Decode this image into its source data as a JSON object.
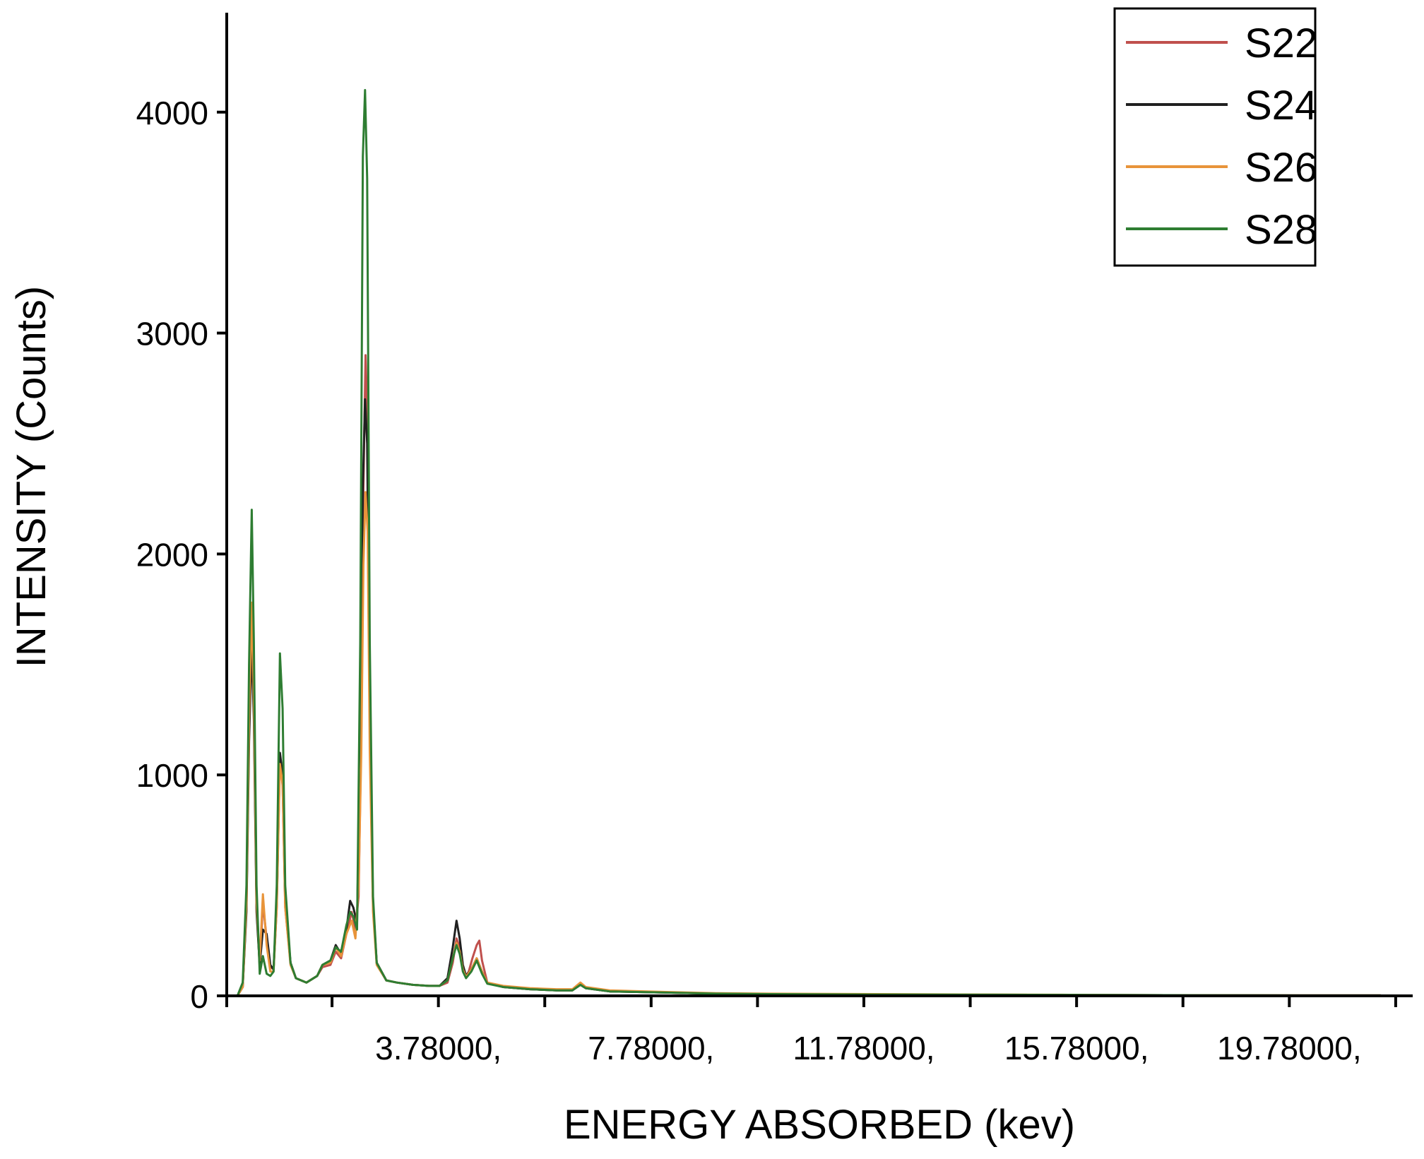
{
  "chart_data": {
    "type": "line",
    "title": "",
    "xlabel": "ENERGY ABSORBED (kev)",
    "ylabel": "INTENSITY (Counts)",
    "xlim": [
      -0.2,
      22.1
    ],
    "ylim": [
      0,
      4450
    ],
    "y_ticks": [
      0,
      1000,
      2000,
      3000,
      4000
    ],
    "y_tick_labels": [
      "0",
      "1000",
      "2000",
      "3000",
      "4000"
    ],
    "x_tick_positions": [
      -0.2,
      1.78,
      3.78,
      5.78,
      7.78,
      9.78,
      11.78,
      13.78,
      15.78,
      17.78,
      19.78,
      21.78
    ],
    "x_labeled_ticks": [
      3.78,
      7.78,
      11.78,
      15.78,
      19.78
    ],
    "x_tick_labels": [
      "3.78000,",
      "7.78000,",
      "11.78000,",
      "15.78000,",
      "19.78000,"
    ],
    "legend": {
      "position": "top-right",
      "entries": [
        "S22",
        "S24",
        "S26",
        "S28"
      ]
    },
    "grid": false,
    "series": [
      {
        "name": "S22",
        "color": "#c0504d",
        "points": [
          [
            0.0,
            0
          ],
          [
            0.1,
            40
          ],
          [
            0.17,
            400
          ],
          [
            0.22,
            1200
          ],
          [
            0.27,
            1650
          ],
          [
            0.31,
            1300
          ],
          [
            0.36,
            400
          ],
          [
            0.42,
            130
          ],
          [
            0.48,
            420
          ],
          [
            0.55,
            260
          ],
          [
            0.62,
            130
          ],
          [
            0.68,
            120
          ],
          [
            0.74,
            400
          ],
          [
            0.8,
            1080
          ],
          [
            0.85,
            950
          ],
          [
            0.9,
            400
          ],
          [
            1.0,
            150
          ],
          [
            1.1,
            80
          ],
          [
            1.3,
            60
          ],
          [
            1.5,
            90
          ],
          [
            1.6,
            130
          ],
          [
            1.75,
            140
          ],
          [
            1.85,
            200
          ],
          [
            1.95,
            170
          ],
          [
            2.05,
            280
          ],
          [
            2.15,
            380
          ],
          [
            2.22,
            300
          ],
          [
            2.28,
            450
          ],
          [
            2.33,
            1200
          ],
          [
            2.37,
            2300
          ],
          [
            2.41,
            2900
          ],
          [
            2.45,
            2600
          ],
          [
            2.49,
            1300
          ],
          [
            2.55,
            420
          ],
          [
            2.62,
            150
          ],
          [
            2.8,
            70
          ],
          [
            3.0,
            60
          ],
          [
            3.3,
            50
          ],
          [
            3.6,
            45
          ],
          [
            3.8,
            45
          ],
          [
            3.95,
            60
          ],
          [
            4.05,
            150
          ],
          [
            4.12,
            260
          ],
          [
            4.18,
            220
          ],
          [
            4.24,
            130
          ],
          [
            4.3,
            90
          ],
          [
            4.35,
            110
          ],
          [
            4.42,
            170
          ],
          [
            4.5,
            230
          ],
          [
            4.55,
            250
          ],
          [
            4.6,
            160
          ],
          [
            4.7,
            60
          ],
          [
            5.0,
            40
          ],
          [
            5.5,
            30
          ],
          [
            6.0,
            25
          ],
          [
            6.3,
            25
          ],
          [
            6.45,
            55
          ],
          [
            6.55,
            35
          ],
          [
            7.0,
            20
          ],
          [
            8.0,
            15
          ],
          [
            9.0,
            10
          ],
          [
            10.0,
            8
          ],
          [
            12.0,
            6
          ],
          [
            14.0,
            5
          ],
          [
            16.0,
            4
          ],
          [
            18.0,
            3
          ],
          [
            20.0,
            2
          ],
          [
            21.5,
            2
          ]
        ]
      },
      {
        "name": "S24",
        "color": "#202020",
        "points": [
          [
            0.0,
            0
          ],
          [
            0.1,
            40
          ],
          [
            0.17,
            380
          ],
          [
            0.22,
            1150
          ],
          [
            0.27,
            1600
          ],
          [
            0.31,
            1250
          ],
          [
            0.36,
            380
          ],
          [
            0.42,
            140
          ],
          [
            0.48,
            300
          ],
          [
            0.55,
            280
          ],
          [
            0.62,
            140
          ],
          [
            0.68,
            120
          ],
          [
            0.74,
            420
          ],
          [
            0.8,
            1100
          ],
          [
            0.85,
            1000
          ],
          [
            0.9,
            420
          ],
          [
            1.0,
            150
          ],
          [
            1.1,
            80
          ],
          [
            1.3,
            60
          ],
          [
            1.5,
            90
          ],
          [
            1.6,
            140
          ],
          [
            1.75,
            160
          ],
          [
            1.85,
            230
          ],
          [
            1.95,
            190
          ],
          [
            2.05,
            300
          ],
          [
            2.12,
            430
          ],
          [
            2.18,
            400
          ],
          [
            2.25,
            330
          ],
          [
            2.31,
            1150
          ],
          [
            2.36,
            2300
          ],
          [
            2.4,
            2700
          ],
          [
            2.44,
            2500
          ],
          [
            2.49,
            1250
          ],
          [
            2.55,
            400
          ],
          [
            2.62,
            150
          ],
          [
            2.8,
            70
          ],
          [
            3.0,
            60
          ],
          [
            3.3,
            50
          ],
          [
            3.6,
            45
          ],
          [
            3.8,
            45
          ],
          [
            3.95,
            80
          ],
          [
            4.05,
            220
          ],
          [
            4.12,
            340
          ],
          [
            4.18,
            260
          ],
          [
            4.24,
            140
          ],
          [
            4.3,
            90
          ],
          [
            4.4,
            120
          ],
          [
            4.5,
            170
          ],
          [
            4.6,
            110
          ],
          [
            4.7,
            60
          ],
          [
            5.0,
            40
          ],
          [
            5.5,
            30
          ],
          [
            6.0,
            25
          ],
          [
            6.3,
            25
          ],
          [
            6.45,
            50
          ],
          [
            6.55,
            35
          ],
          [
            7.0,
            20
          ],
          [
            8.0,
            15
          ],
          [
            9.0,
            10
          ],
          [
            10.0,
            8
          ],
          [
            12.0,
            6
          ],
          [
            14.0,
            5
          ],
          [
            16.0,
            4
          ],
          [
            18.0,
            3
          ],
          [
            20.0,
            2
          ],
          [
            21.5,
            2
          ]
        ]
      },
      {
        "name": "S26",
        "color": "#e8943a",
        "points": [
          [
            0.0,
            0
          ],
          [
            0.1,
            40
          ],
          [
            0.17,
            420
          ],
          [
            0.22,
            1250
          ],
          [
            0.27,
            1780
          ],
          [
            0.31,
            1350
          ],
          [
            0.36,
            420
          ],
          [
            0.42,
            160
          ],
          [
            0.48,
            460
          ],
          [
            0.55,
            230
          ],
          [
            0.62,
            110
          ],
          [
            0.68,
            110
          ],
          [
            0.74,
            400
          ],
          [
            0.8,
            1050
          ],
          [
            0.85,
            960
          ],
          [
            0.9,
            400
          ],
          [
            1.0,
            140
          ],
          [
            1.1,
            80
          ],
          [
            1.3,
            60
          ],
          [
            1.5,
            90
          ],
          [
            1.6,
            140
          ],
          [
            1.75,
            150
          ],
          [
            1.85,
            220
          ],
          [
            1.95,
            180
          ],
          [
            2.05,
            280
          ],
          [
            2.15,
            340
          ],
          [
            2.22,
            260
          ],
          [
            2.28,
            500
          ],
          [
            2.33,
            1100
          ],
          [
            2.37,
            1950
          ],
          [
            2.41,
            2280
          ],
          [
            2.45,
            2100
          ],
          [
            2.49,
            1100
          ],
          [
            2.55,
            380
          ],
          [
            2.62,
            140
          ],
          [
            2.8,
            70
          ],
          [
            3.0,
            60
          ],
          [
            3.3,
            50
          ],
          [
            3.6,
            45
          ],
          [
            3.8,
            45
          ],
          [
            3.95,
            70
          ],
          [
            4.05,
            170
          ],
          [
            4.12,
            240
          ],
          [
            4.18,
            200
          ],
          [
            4.24,
            120
          ],
          [
            4.3,
            85
          ],
          [
            4.4,
            120
          ],
          [
            4.5,
            170
          ],
          [
            4.6,
            110
          ],
          [
            4.7,
            60
          ],
          [
            5.0,
            45
          ],
          [
            5.5,
            35
          ],
          [
            6.0,
            30
          ],
          [
            6.3,
            30
          ],
          [
            6.45,
            60
          ],
          [
            6.55,
            40
          ],
          [
            7.0,
            25
          ],
          [
            8.0,
            18
          ],
          [
            9.0,
            12
          ],
          [
            10.0,
            10
          ],
          [
            12.0,
            8
          ],
          [
            14.0,
            6
          ],
          [
            15.5,
            5
          ],
          [
            16.0,
            4
          ],
          [
            18.0,
            3
          ],
          [
            20.0,
            2
          ],
          [
            21.5,
            2
          ]
        ]
      },
      {
        "name": "S28",
        "color": "#2e7d32",
        "points": [
          [
            0.0,
            0
          ],
          [
            0.1,
            60
          ],
          [
            0.17,
            500
          ],
          [
            0.22,
            1500
          ],
          [
            0.27,
            2200
          ],
          [
            0.31,
            1600
          ],
          [
            0.36,
            500
          ],
          [
            0.42,
            100
          ],
          [
            0.48,
            180
          ],
          [
            0.55,
            100
          ],
          [
            0.62,
            90
          ],
          [
            0.68,
            110
          ],
          [
            0.74,
            500
          ],
          [
            0.8,
            1550
          ],
          [
            0.85,
            1300
          ],
          [
            0.9,
            500
          ],
          [
            1.0,
            150
          ],
          [
            1.1,
            80
          ],
          [
            1.3,
            60
          ],
          [
            1.5,
            90
          ],
          [
            1.6,
            140
          ],
          [
            1.75,
            160
          ],
          [
            1.85,
            220
          ],
          [
            1.95,
            200
          ],
          [
            2.05,
            320
          ],
          [
            2.12,
            380
          ],
          [
            2.18,
            360
          ],
          [
            2.25,
            300
          ],
          [
            2.31,
            1600
          ],
          [
            2.36,
            3800
          ],
          [
            2.4,
            4100
          ],
          [
            2.44,
            3700
          ],
          [
            2.49,
            1600
          ],
          [
            2.55,
            450
          ],
          [
            2.62,
            150
          ],
          [
            2.8,
            70
          ],
          [
            3.0,
            60
          ],
          [
            3.3,
            50
          ],
          [
            3.6,
            45
          ],
          [
            3.8,
            45
          ],
          [
            3.95,
            70
          ],
          [
            4.05,
            170
          ],
          [
            4.12,
            230
          ],
          [
            4.18,
            190
          ],
          [
            4.24,
            110
          ],
          [
            4.3,
            80
          ],
          [
            4.4,
            110
          ],
          [
            4.5,
            160
          ],
          [
            4.6,
            100
          ],
          [
            4.7,
            55
          ],
          [
            5.0,
            40
          ],
          [
            5.5,
            30
          ],
          [
            6.0,
            25
          ],
          [
            6.3,
            25
          ],
          [
            6.45,
            50
          ],
          [
            6.55,
            35
          ],
          [
            7.0,
            20
          ],
          [
            8.0,
            15
          ],
          [
            9.0,
            10
          ],
          [
            10.0,
            8
          ],
          [
            12.0,
            6
          ],
          [
            14.0,
            5
          ],
          [
            16.0,
            4
          ],
          [
            18.0,
            3
          ],
          [
            20.0,
            2
          ],
          [
            21.5,
            2
          ]
        ]
      }
    ]
  }
}
